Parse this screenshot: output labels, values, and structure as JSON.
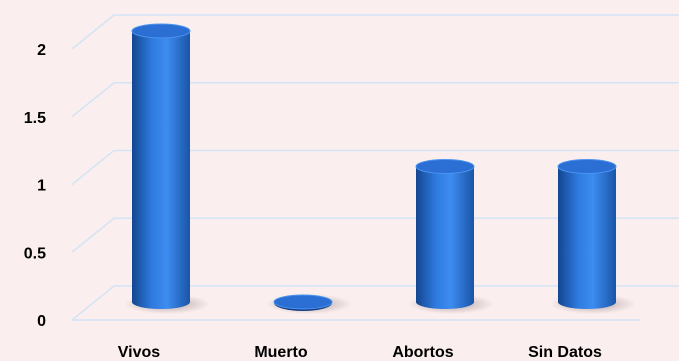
{
  "chart_data": {
    "type": "bar",
    "categories": [
      "Vivos",
      "Muerto",
      "Abortos",
      "Sin Datos"
    ],
    "values": [
      2,
      0,
      1,
      1
    ],
    "ylim": [
      0,
      2.1
    ],
    "yticks": [
      0,
      0.5,
      1,
      1.5,
      2
    ],
    "ytick_labels": [
      "0",
      "0.5",
      "1",
      "1.5",
      "2"
    ],
    "grid": true,
    "legend": "none",
    "title": "",
    "xlabel": "",
    "ylabel": "",
    "colors": {
      "bar": "#2a6fd6",
      "grid": "#d3e4f5",
      "background": "#fbeeee"
    }
  }
}
